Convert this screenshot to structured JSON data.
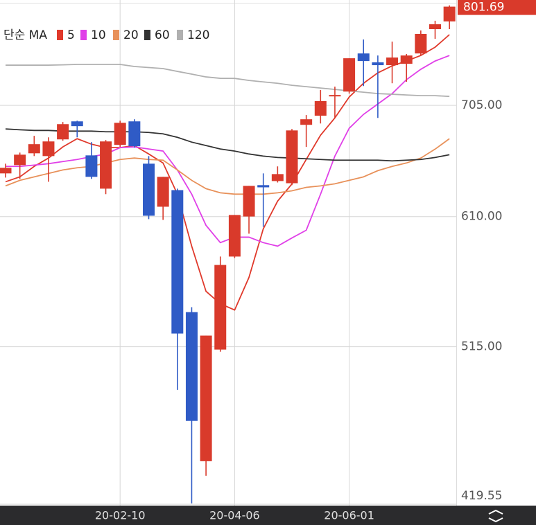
{
  "chart_data": {
    "type": "candlestick",
    "legend_title": "단순 MA",
    "log_scale": true,
    "grid": true,
    "up_color": "#d93a2b",
    "down_color": "#2f5bc6",
    "ylim": [
      419.55,
      805
    ],
    "yticks": [
      419.55,
      {
        "value": 515,
        "label": "515.00"
      },
      {
        "value": 610,
        "label": "610.00"
      },
      {
        "value": 705,
        "label": "705.00"
      }
    ],
    "last_price": 801.69,
    "categories": [
      null,
      null,
      null,
      null,
      null,
      null,
      null,
      null,
      "20-02-10",
      null,
      null,
      null,
      null,
      null,
      null,
      null,
      "20-04-06",
      null,
      null,
      null,
      null,
      null,
      null,
      null,
      "20-06-01",
      null,
      null,
      null,
      null,
      null,
      null,
      null
    ],
    "open": [
      645.3,
      652.3,
      662.4,
      660.0,
      674.5,
      690.5,
      660.6,
      632.6,
      669.7,
      690.5,
      653.5,
      617.9,
      631.4,
      538.7,
      443.7,
      513.1,
      579.1,
      610.1,
      635.5,
      638.9,
      637.1,
      687.4,
      695.6,
      713.3,
      717.8,
      754.3,
      745.6,
      742.9,
      744.2,
      754.3,
      778.6,
      786.4
    ],
    "high": [
      653.5,
      663.0,
      677.6,
      676.3,
      689.9,
      691.1,
      672.1,
      673.9,
      691.1,
      692.4,
      660.0,
      642.4,
      632.6,
      542.2,
      522.5,
      579.1,
      611.3,
      634.9,
      645.3,
      651.2,
      683.7,
      696.2,
      719.2,
      722.4,
      749.6,
      768.1,
      752.3,
      766.0,
      753.7,
      777.2,
      787.1,
      803.0
    ],
    "low": [
      641.8,
      640.7,
      660.0,
      638.3,
      673.3,
      676.3,
      640.7,
      628.1,
      667.9,
      667.3,
      608.0,
      607.4,
      486.9,
      420.0,
      435.4,
      511.7,
      578.0,
      596.6,
      602.0,
      637.7,
      635.5,
      667.9,
      688.6,
      693.6,
      715.9,
      723.0,
      693.6,
      725.6,
      727.0,
      752.3,
      768.8,
      778.6
    ],
    "close": [
      650.0,
      661.2,
      670.3,
      672.7,
      688.0,
      686.2,
      642.4,
      672.7,
      689.2,
      668.5,
      610.7,
      642.4,
      523.9,
      467.6,
      522.5,
      572.8,
      611.3,
      634.9,
      633.7,
      644.7,
      682.4,
      692.4,
      709.0,
      714.6,
      749.6,
      746.9,
      742.9,
      750.3,
      752.3,
      773.7,
      783.5,
      801.69
    ],
    "series": [
      {
        "name": "5",
        "color": "#e0392b",
        "values": [
          638.3,
          642.4,
          651.2,
          658.3,
          667.9,
          675.1,
          670.3,
          667.3,
          667.3,
          669.1,
          661.8,
          654.1,
          628.1,
          587.0,
          553.5,
          544.6,
          540.2,
          563.6,
          600.4,
          622.4,
          636.5,
          657.1,
          678.2,
          693.6,
          712.7,
          725.6,
          735.5,
          742.2,
          746.9,
          752.3,
          760.5,
          773.0
        ]
      },
      {
        "name": "10",
        "color": "#e040e8",
        "values": [
          651.2,
          651.2,
          652.3,
          653.5,
          655.3,
          657.1,
          659.5,
          661.8,
          667.3,
          667.9,
          666.1,
          664.3,
          648.2,
          628.1,
          603.1,
          589.7,
          593.9,
          593.9,
          589.7,
          587.0,
          593.3,
          599.3,
          628.1,
          660.0,
          684.3,
          696.8,
          706.3,
          715.9,
          729.0,
          738.9,
          746.9,
          752.3
        ]
      },
      {
        "name": "20",
        "color": "#e8915a",
        "values": [
          634.9,
          639.5,
          642.4,
          645.3,
          648.2,
          650.0,
          651.2,
          654.1,
          657.1,
          658.3,
          657.1,
          656.5,
          648.2,
          639.5,
          632.6,
          629.2,
          628.1,
          628.1,
          628.1,
          629.2,
          630.8,
          633.7,
          634.9,
          636.6,
          639.5,
          642.4,
          647.6,
          651.2,
          654.1,
          658.3,
          666.0,
          675.1
        ]
      },
      {
        "name": "60",
        "color": "#333333",
        "values": [
          683.7,
          683.0,
          682.4,
          682.4,
          681.8,
          681.8,
          681.8,
          681.2,
          681.2,
          681.2,
          680.6,
          679.4,
          676.3,
          672.1,
          669.1,
          666.1,
          664.3,
          661.8,
          660.0,
          658.8,
          658.3,
          657.7,
          657.1,
          656.5,
          656.5,
          656.5,
          656.5,
          655.9,
          656.5,
          657.1,
          658.8,
          661.2
        ]
      },
      {
        "name": "120",
        "color": "#b0b0b0",
        "values": [
          742.9,
          742.9,
          742.9,
          742.9,
          743.2,
          743.6,
          743.6,
          743.6,
          743.6,
          741.6,
          740.6,
          739.6,
          736.9,
          734.3,
          731.6,
          730.3,
          730.2,
          728.3,
          726.9,
          725.6,
          723.7,
          722.4,
          721.1,
          719.8,
          718.5,
          717.2,
          715.9,
          715.3,
          714.6,
          714.0,
          714.0,
          713.3
        ]
      }
    ]
  }
}
